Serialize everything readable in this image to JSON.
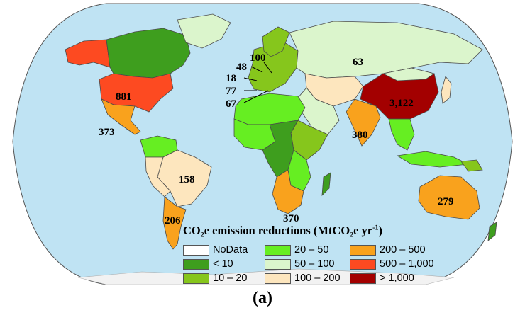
{
  "colors": {
    "ocean": "#bfe3f3",
    "nodata": "#ffffff",
    "lt10": "#3e9e1e",
    "c10_20": "#86c61c",
    "c20_50": "#66ee22",
    "c50_100": "#dbf5cc",
    "c100_200": "#fde6be",
    "c200_500": "#f9a21d",
    "c500_1000": "#fd4a21",
    "gt1000": "#a30000",
    "antarctica": "#f2f2f2"
  },
  "legend": {
    "title_main": "CO₂e emission reductions (MtCO₂e yr",
    "title_sup": "-1",
    "title_end": ")",
    "items": [
      {
        "label": "NoData",
        "color": "#ffffff"
      },
      {
        "label": "< 10",
        "color": "#3e9e1e"
      },
      {
        "label": "10 – 20",
        "color": "#86c61c"
      },
      {
        "label": "20 – 50",
        "color": "#66ee22"
      },
      {
        "label": "50 – 100",
        "color": "#dbf5cc"
      },
      {
        "label": "100 – 200",
        "color": "#fde6be"
      },
      {
        "label": "200 – 500",
        "color": "#f9a21d"
      },
      {
        "label": "500 – 1,000",
        "color": "#fd4a21"
      },
      {
        "label": "> 1,000",
        "color": "#a30000"
      }
    ]
  },
  "values": {
    "usa": "881",
    "mexico": "373",
    "brazil": "158",
    "argentina": "206",
    "russia": "63",
    "china": "3,122",
    "india": "380",
    "australia": "279",
    "south_africa": "370",
    "poland": "100",
    "germany": "48",
    "france": "18",
    "spain": "77",
    "italy": "67"
  },
  "caption": "(a)"
}
